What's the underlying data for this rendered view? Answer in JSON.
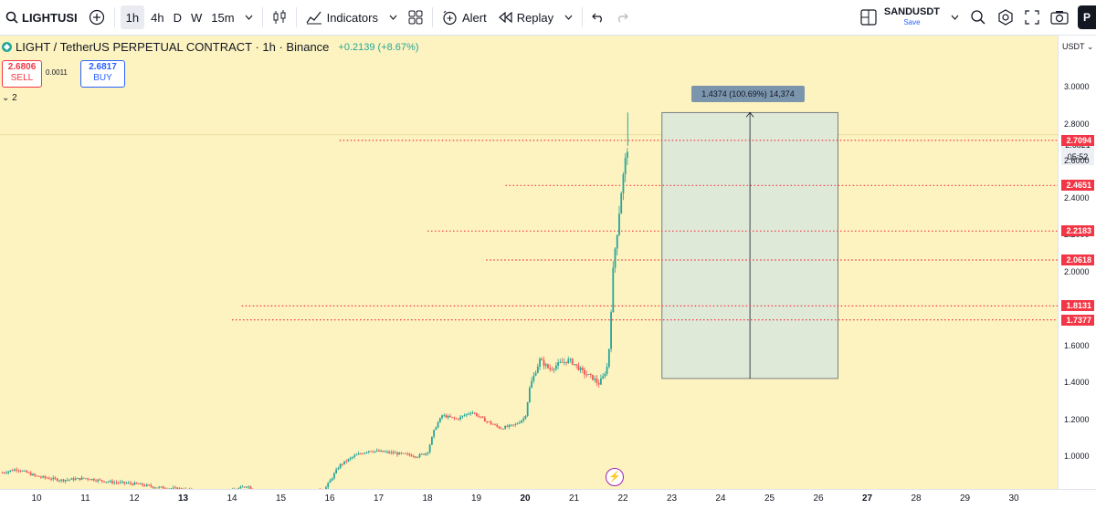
{
  "toolbar": {
    "symbol": "LIGHTUSI",
    "intervals": [
      "1h",
      "4h",
      "D",
      "W",
      "15m"
    ],
    "active_interval": "1h",
    "indicators_label": "Indicators",
    "alert_label": "Alert",
    "replay_label": "Replay",
    "layout_name": "SANDUSDT",
    "layout_save": "Save",
    "publish_label": "P"
  },
  "legend": {
    "title": "LIGHT / TetherUS PERPETUAL CONTRACT · 1h · Binance",
    "change": "+0.2139 (+8.67%)",
    "sell_price": "2.6806",
    "sell_label": "SELL",
    "spread": "0.0011",
    "buy_price": "2.6817",
    "buy_label": "BUY",
    "collapse_count": "2"
  },
  "measure": {
    "label": "1.4374 (100.69%) 14,374"
  },
  "price_axis": {
    "currency": "USDT",
    "current_price": "2.6821",
    "countdown": "05:52"
  },
  "colors": {
    "background": "#fdf3c0",
    "up": "#26a69a",
    "down": "#ef5350",
    "level_line": "#f23645",
    "measure_fill": "#dfe9d8"
  },
  "chart_data": {
    "type": "candlestick",
    "title": "LIGHT / TetherUS PERPETUAL CONTRACT · 1h · Binance",
    "x_ticks": [
      "10",
      "11",
      "12",
      "13",
      "14",
      "15",
      "16",
      "17",
      "18",
      "19",
      "20",
      "21",
      "22",
      "23",
      "24",
      "25",
      "26",
      "27",
      "28",
      "29",
      "30"
    ],
    "y_ticks": [
      "3.0000",
      "2.8000",
      "2.6000",
      "2.4000",
      "2.2000",
      "2.0000",
      "1.8000",
      "1.6000",
      "1.4000",
      "1.2000",
      "1.0000"
    ],
    "ylim": [
      0.78,
      3.12
    ],
    "horizontal_levels": [
      {
        "price": 2.7094,
        "label": "2.7094",
        "from_day": 16.2
      },
      {
        "price": 2.4651,
        "label": "2.4651",
        "from_day": 19.6
      },
      {
        "price": 2.2183,
        "label": "2.2183",
        "from_day": 18.0
      },
      {
        "price": 2.0618,
        "label": "2.0618",
        "from_day": 19.2
      },
      {
        "price": 1.8131,
        "label": "1.8131",
        "from_day": 14.2
      },
      {
        "price": 1.7377,
        "label": "1.7377",
        "from_day": 14.0
      }
    ],
    "measure_range": {
      "from_day": 22.8,
      "to_day": 26.4,
      "low": 1.42,
      "high": 2.86
    },
    "close_path": [
      [
        9.3,
        0.91
      ],
      [
        9.6,
        0.93
      ],
      [
        10.0,
        0.89
      ],
      [
        10.5,
        0.87
      ],
      [
        11.0,
        0.88
      ],
      [
        11.5,
        0.86
      ],
      [
        12.0,
        0.85
      ],
      [
        12.5,
        0.83
      ],
      [
        13.0,
        0.82
      ],
      [
        13.5,
        0.8
      ],
      [
        14.0,
        0.81
      ],
      [
        14.3,
        0.84
      ],
      [
        14.6,
        0.8
      ],
      [
        15.0,
        0.79
      ],
      [
        15.5,
        0.8
      ],
      [
        15.9,
        0.82
      ],
      [
        16.2,
        0.95
      ],
      [
        16.5,
        1.0
      ],
      [
        16.8,
        1.03
      ],
      [
        17.2,
        1.02
      ],
      [
        17.5,
        1.01
      ],
      [
        17.8,
        1.0
      ],
      [
        18.0,
        1.02
      ],
      [
        18.15,
        1.15
      ],
      [
        18.3,
        1.22
      ],
      [
        18.6,
        1.2
      ],
      [
        18.9,
        1.24
      ],
      [
        19.2,
        1.19
      ],
      [
        19.5,
        1.15
      ],
      [
        19.8,
        1.17
      ],
      [
        20.0,
        1.21
      ],
      [
        20.1,
        1.38
      ],
      [
        20.3,
        1.52
      ],
      [
        20.5,
        1.47
      ],
      [
        20.7,
        1.5
      ],
      [
        20.9,
        1.52
      ],
      [
        21.0,
        1.5
      ],
      [
        21.2,
        1.45
      ],
      [
        21.4,
        1.42
      ],
      [
        21.5,
        1.39
      ],
      [
        21.6,
        1.43
      ],
      [
        21.7,
        1.5
      ],
      [
        21.75,
        1.75
      ],
      [
        21.8,
        2.0
      ],
      [
        21.85,
        2.15
      ],
      [
        21.9,
        2.25
      ],
      [
        21.95,
        2.4
      ],
      [
        22.0,
        2.5
      ],
      [
        22.05,
        2.6
      ],
      [
        22.1,
        2.68
      ]
    ]
  }
}
